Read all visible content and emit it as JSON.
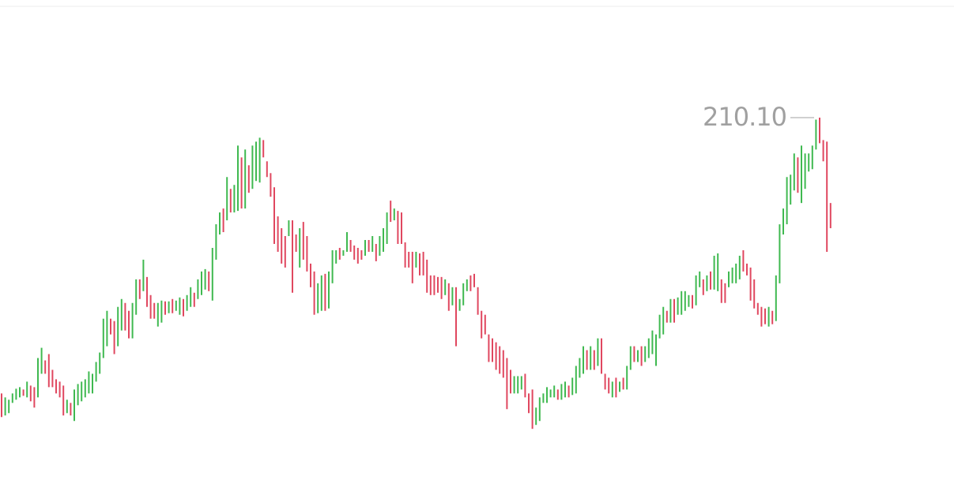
{
  "chart_data": {
    "type": "candlestick",
    "annotation": {
      "value": 210.1,
      "label": "210.10"
    },
    "ylim": [
      118,
      240
    ],
    "up_color": "#3fb950",
    "down_color": "#e0475f",
    "annotation_color": "#a0a0a0",
    "high": [
      140,
      139,
      138.4,
      140,
      141.2,
      141.6,
      141,
      143,
      142,
      141.6,
      149,
      151.6,
      148.4,
      150,
      146,
      143.6,
      143,
      142,
      138.4,
      137.6,
      141,
      142.4,
      143,
      143.6,
      145.6,
      145,
      148,
      150.4,
      159,
      161,
      159,
      158.4,
      162,
      164,
      163,
      161,
      163,
      169,
      169,
      174,
      169.6,
      165,
      163,
      163,
      163.6,
      163.4,
      163.4,
      164,
      163.6,
      164.4,
      164,
      165,
      167,
      165.6,
      169,
      171,
      171.6,
      171,
      177,
      183,
      186,
      187,
      195,
      192,
      193,
      203,
      200,
      202,
      198,
      203,
      204,
      205,
      204.4,
      199,
      196,
      192.4,
      185,
      182,
      180,
      184,
      184,
      180.4,
      182,
      183.6,
      180,
      173,
      171,
      168,
      170,
      170.4,
      171,
      176.4,
      176.4,
      177,
      176.4,
      181,
      179,
      177.6,
      177,
      176.4,
      179,
      179,
      180,
      178,
      180,
      182,
      186,
      189,
      187,
      186.4,
      186,
      178.4,
      176,
      176,
      176,
      175.6,
      176,
      174,
      170,
      170,
      169.6,
      169.6,
      169,
      168,
      167,
      167,
      164,
      168,
      169,
      170,
      170.4,
      167,
      161,
      160,
      155,
      154,
      153,
      152,
      151,
      149,
      146,
      144.4,
      144.4,
      144.4,
      145,
      140,
      141,
      136.4,
      139,
      140,
      141.6,
      141,
      142,
      141,
      142.4,
      143,
      142,
      144,
      147,
      149,
      152,
      151,
      152,
      151,
      154,
      154,
      145,
      144,
      143,
      144,
      143,
      144,
      147,
      152,
      152,
      151,
      152,
      152,
      154,
      156,
      155,
      160,
      162,
      161,
      164,
      164,
      164.4,
      166,
      166,
      165,
      165,
      170,
      171,
      169,
      170,
      171,
      175,
      175.6,
      169,
      168,
      171,
      172,
      173,
      175,
      176.4,
      173,
      172,
      169,
      163,
      162,
      161.6,
      162,
      161,
      170,
      183,
      187,
      195,
      195.6,
      201,
      200,
      203,
      201,
      201,
      203,
      209.6,
      210.1,
      204.4,
      204,
      188.4
    ],
    "low": [
      134,
      134.4,
      135,
      137.6,
      138.4,
      139,
      139.4,
      139,
      138,
      136.4,
      139,
      145,
      145,
      141.6,
      141.6,
      140,
      139,
      134.4,
      135,
      134.4,
      133,
      137,
      138,
      139,
      140,
      140,
      143,
      145,
      149,
      152,
      155,
      150,
      152,
      156,
      156,
      154,
      154,
      160,
      164,
      166,
      162,
      159,
      159,
      157,
      158,
      160,
      160.4,
      160.4,
      161,
      160,
      159.6,
      161,
      162,
      162,
      164,
      165,
      166.4,
      166,
      163.6,
      174,
      180.4,
      181,
      184,
      186,
      186,
      186.4,
      187,
      187,
      191,
      192,
      194,
      193.6,
      200,
      195,
      190,
      178,
      176,
      173,
      172,
      180,
      165.6,
      176,
      172,
      174,
      171,
      167,
      160,
      160.4,
      161,
      161,
      161.6,
      168,
      173,
      174,
      175,
      176,
      176,
      174,
      173,
      174,
      175,
      176,
      176,
      173.6,
      175,
      176,
      178,
      183.6,
      184,
      178,
      178,
      172,
      172,
      168,
      172,
      170,
      170,
      165.6,
      165,
      165,
      165.6,
      164,
      165,
      161,
      162.4,
      152,
      161,
      162.4,
      166,
      166,
      167,
      160,
      154,
      155,
      148,
      148,
      146,
      145,
      144,
      136,
      140,
      140,
      140,
      141,
      139,
      135,
      131,
      132,
      133,
      137.6,
      137.6,
      139,
      139,
      138.4,
      138.4,
      139,
      139,
      139.6,
      140,
      144,
      145,
      146,
      146,
      146,
      147,
      145,
      141,
      140,
      139,
      139,
      140.4,
      141,
      141,
      146,
      148,
      148,
      147,
      148,
      149,
      150,
      147,
      154,
      155,
      158,
      158,
      158,
      160,
      160,
      161,
      162,
      161.6,
      162.4,
      167,
      165,
      166,
      166.4,
      166.4,
      166,
      163,
      163,
      167,
      168,
      168,
      169,
      171,
      170,
      163.6,
      161.6,
      160,
      157,
      157.6,
      157,
      157.6,
      158.4,
      168,
      180.4,
      183,
      188,
      191.6,
      191,
      188.4,
      192,
      196.4,
      197,
      202,
      203.6,
      199,
      176,
      182
    ],
    "up": [
      false,
      true,
      true,
      true,
      true,
      true,
      false,
      true,
      false,
      false,
      true,
      true,
      false,
      false,
      false,
      false,
      false,
      false,
      true,
      false,
      true,
      true,
      true,
      true,
      true,
      true,
      true,
      true,
      true,
      true,
      false,
      false,
      true,
      true,
      false,
      false,
      true,
      true,
      false,
      true,
      false,
      false,
      false,
      true,
      true,
      false,
      true,
      false,
      true,
      true,
      false,
      true,
      true,
      false,
      true,
      true,
      true,
      false,
      true,
      true,
      true,
      false,
      true,
      false,
      true,
      true,
      false,
      true,
      false,
      true,
      true,
      true,
      false,
      false,
      false,
      false,
      false,
      false,
      false,
      true,
      false,
      false,
      true,
      false,
      false,
      false,
      false,
      true,
      true,
      false,
      true,
      true,
      true,
      false,
      true,
      true,
      false,
      false,
      false,
      false,
      true,
      false,
      true,
      false,
      true,
      true,
      true,
      false,
      true,
      false,
      false,
      false,
      false,
      false,
      true,
      false,
      false,
      false,
      false,
      false,
      false,
      false,
      true,
      false,
      true,
      false,
      true,
      true,
      true,
      false,
      false,
      false,
      false,
      false,
      false,
      false,
      false,
      false,
      false,
      false,
      false,
      true,
      true,
      true,
      false,
      false,
      false,
      true,
      true,
      true,
      true,
      true,
      true,
      false,
      true,
      true,
      false,
      true,
      true,
      true,
      true,
      false,
      true,
      false,
      true,
      false,
      false,
      false,
      true,
      false,
      true,
      false,
      true,
      true,
      false,
      true,
      false,
      true,
      true,
      true,
      true,
      true,
      true,
      false,
      true,
      false,
      true,
      true,
      true,
      true,
      false,
      true,
      true,
      false,
      true,
      false,
      true,
      true,
      false,
      false,
      true,
      true,
      true,
      true,
      false,
      false,
      false,
      false,
      false,
      false,
      false,
      true,
      false,
      true,
      true,
      true,
      true,
      true,
      true,
      false,
      true,
      true,
      true,
      true,
      true,
      false,
      false,
      false,
      false
    ]
  }
}
